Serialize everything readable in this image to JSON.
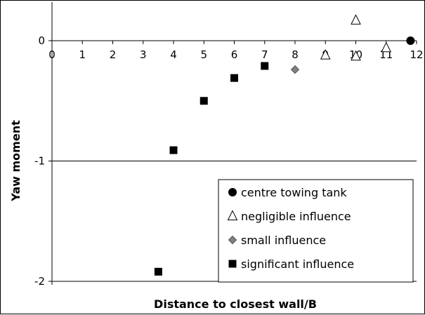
{
  "chart_data": {
    "type": "scatter",
    "title": "",
    "xlabel": "Distance to closest wall/B",
    "ylabel": "Yaw moment",
    "xlim": [
      0,
      12
    ],
    "ylim": [
      -2,
      0.2
    ],
    "x_ticks": [
      "0",
      "1",
      "2",
      "3",
      "4",
      "5",
      "6",
      "7",
      "8",
      "9",
      "10",
      "11",
      "12"
    ],
    "y_ticks": [
      "0",
      "-1",
      "-2"
    ],
    "y_tick_values": [
      0,
      -1,
      -2
    ],
    "x_tick_values": [
      0,
      1,
      2,
      3,
      4,
      5,
      6,
      7,
      8,
      9,
      10,
      11,
      12
    ],
    "grid": "horizontal major gridlines",
    "legend_position": "bottom-right",
    "series": [
      {
        "name": "centre towing tank",
        "marker": "circle",
        "color": "#000000",
        "points": [
          {
            "x": 11.8,
            "y": 0
          }
        ]
      },
      {
        "name": "negligible influence",
        "marker": "triangle-open",
        "color": "#000000",
        "points": [
          {
            "x": 9,
            "y": -0.12
          },
          {
            "x": 10,
            "y": 0.17
          },
          {
            "x": 10,
            "y": -0.13
          },
          {
            "x": 11,
            "y": -0.06
          }
        ]
      },
      {
        "name": "small influence",
        "marker": "diamond",
        "color": "#808080",
        "points": [
          {
            "x": 8,
            "y": -0.24
          }
        ]
      },
      {
        "name": "significant influence",
        "marker": "square",
        "color": "#000000",
        "points": [
          {
            "x": 3.5,
            "y": -1.92
          },
          {
            "x": 4,
            "y": -0.91
          },
          {
            "x": 5,
            "y": -0.5
          },
          {
            "x": 6,
            "y": -0.31
          },
          {
            "x": 7,
            "y": -0.21
          }
        ]
      }
    ]
  }
}
